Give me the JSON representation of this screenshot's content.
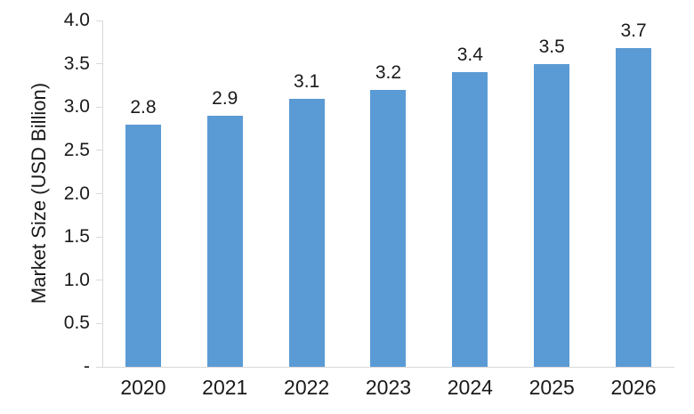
{
  "chart_data": {
    "type": "bar",
    "title": "",
    "categories": [
      "2020",
      "2021",
      "2022",
      "2023",
      "2024",
      "2025",
      "2026"
    ],
    "values": [
      2.8,
      2.9,
      3.1,
      3.2,
      3.4,
      3.5,
      3.7
    ],
    "data_labels": [
      "2.8",
      "2.9",
      "3.1",
      "3.2",
      "3.4",
      "3.5",
      "3.7"
    ],
    "xlabel": "",
    "ylabel": "Market Size (USD Billion)",
    "ylim": [
      0,
      4.0
    ],
    "ytick_interval": 0.5,
    "ytick_labels_bottom_to_top": [
      "-",
      "0.5",
      "1.0",
      "1.5",
      "2.0",
      "2.5",
      "3.0",
      "3.5",
      "4.0"
    ],
    "grid": false,
    "legend": "none",
    "colors": {
      "bar": "#5B9BD5",
      "axis_line": "#D9D9D9",
      "text": "#1A1A1A"
    }
  }
}
